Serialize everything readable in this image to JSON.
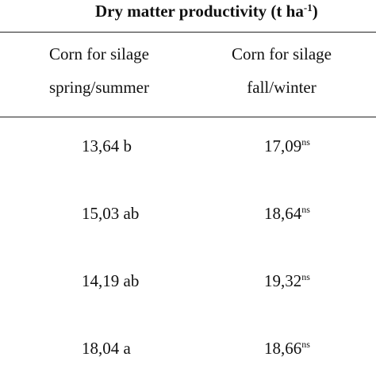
{
  "table": {
    "title": "Dry matter productivity (t ha",
    "title_sup": "-1",
    "title_close": ")",
    "columns": [
      {
        "line1": "Corn for silage",
        "line2": "spring/summer"
      },
      {
        "line1": "Corn for silage",
        "line2": "fall/winter"
      }
    ],
    "rows": [
      {
        "spring": "13,64 b",
        "fall": "17,09",
        "fall_sup": "ns"
      },
      {
        "spring": "15,03 ab",
        "fall": "18,64",
        "fall_sup": "ns"
      },
      {
        "spring": "14,19 ab",
        "fall": "19,32",
        "fall_sup": "ns"
      },
      {
        "spring": "18,04 a",
        "fall": "18,66",
        "fall_sup": "ns"
      }
    ]
  }
}
